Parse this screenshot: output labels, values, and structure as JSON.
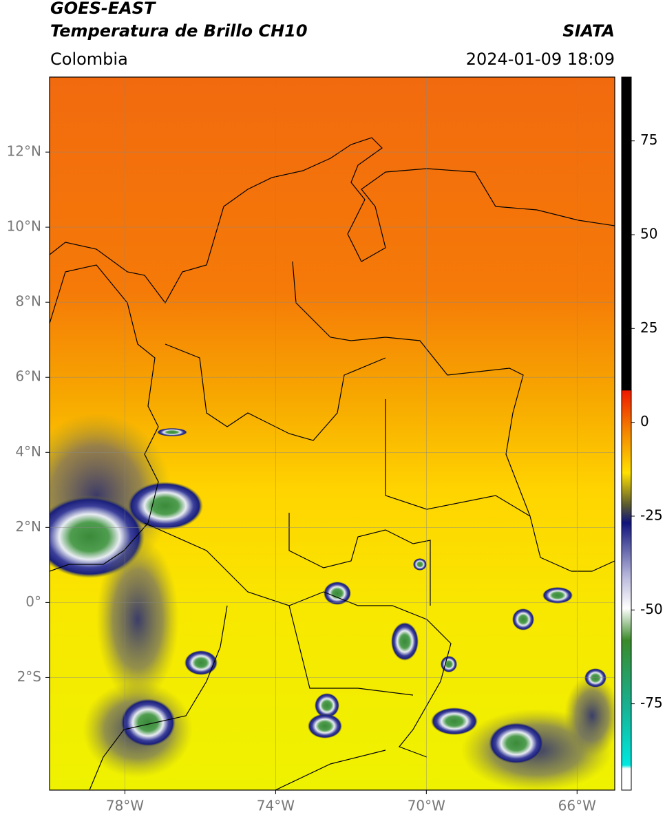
{
  "header": {
    "title": "GOES-EAST",
    "subtitle": "Temperatura de Brillo CH10",
    "source": "SIATA",
    "region": "Colombia",
    "datetime": "2024-01-09 18:09"
  },
  "map": {
    "xlim": [
      -80,
      -65
    ],
    "ylim": [
      -5,
      14
    ],
    "xticks": [
      {
        "value": -78,
        "label": "78°W"
      },
      {
        "value": -74,
        "label": "74°W"
      },
      {
        "value": -70,
        "label": "70°W"
      },
      {
        "value": -66,
        "label": "66°W"
      }
    ],
    "yticks": [
      {
        "value": 12,
        "label": "12°N"
      },
      {
        "value": 10,
        "label": "10°N"
      },
      {
        "value": 8,
        "label": "8°N"
      },
      {
        "value": 6,
        "label": "6°N"
      },
      {
        "value": 4,
        "label": "4°N"
      },
      {
        "value": 2,
        "label": "2°N"
      },
      {
        "value": 0,
        "label": "0°"
      },
      {
        "value": -2,
        "label": "2°S"
      }
    ],
    "grid": true
  },
  "colorbar": {
    "lim": [
      -98,
      92
    ],
    "ticks": [
      75,
      50,
      25,
      0,
      -25,
      -50,
      -75
    ]
  }
}
